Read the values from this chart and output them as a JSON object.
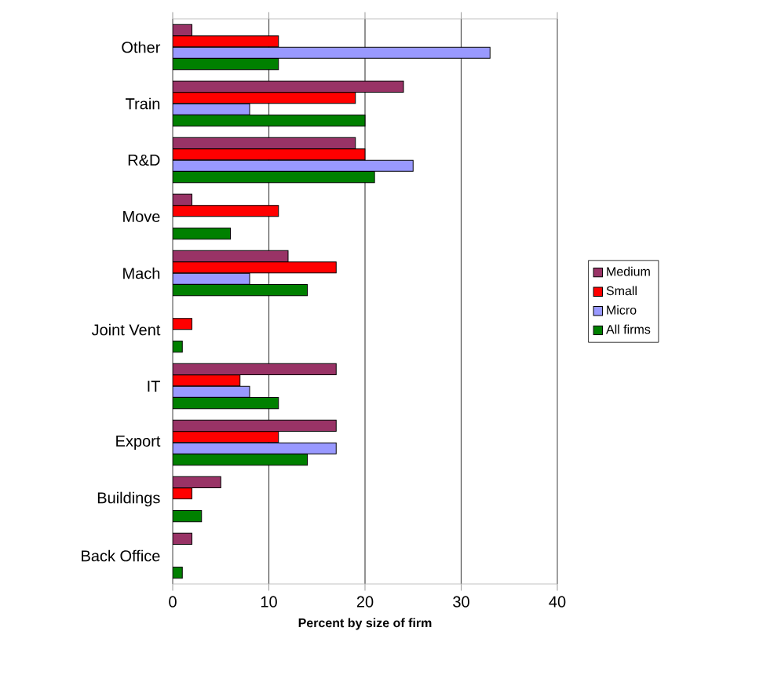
{
  "chart_data": {
    "type": "bar",
    "orientation": "horizontal",
    "xlabel": "Percent by size of firm",
    "categories": [
      "Other",
      "Train",
      "R&D",
      "Move",
      "Mach",
      "Joint Vent",
      "IT",
      "Export",
      "Buildings",
      "Back Office"
    ],
    "series": [
      {
        "name": "Medium",
        "color": "#993366",
        "values": [
          2,
          24,
          19,
          2,
          12,
          0,
          17,
          17,
          5,
          2
        ]
      },
      {
        "name": "Small",
        "color": "#ff0000",
        "values": [
          11,
          19,
          20,
          11,
          17,
          2,
          7,
          11,
          2,
          0
        ]
      },
      {
        "name": "Micro",
        "color": "#9999ff",
        "values": [
          33,
          8,
          25,
          0,
          8,
          0,
          8,
          17,
          0,
          0
        ]
      },
      {
        "name": "All firms",
        "color": "#008000",
        "values": [
          11,
          20,
          21,
          6,
          14,
          1,
          11,
          14,
          3,
          1
        ]
      }
    ],
    "xlim": [
      0,
      40
    ],
    "xticks": [
      0,
      10,
      20,
      30,
      40
    ],
    "grid": "x",
    "legend": "right"
  }
}
